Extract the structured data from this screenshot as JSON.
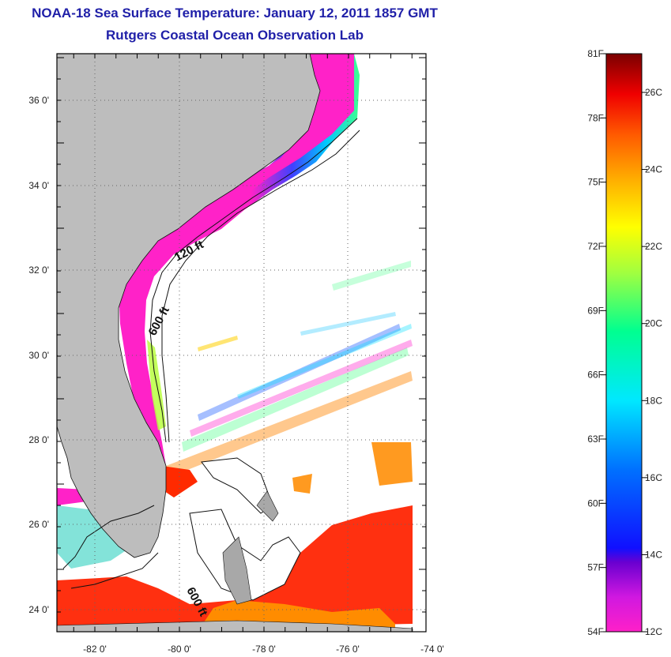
{
  "header": {
    "title": "NOAA-18 Sea Surface Temperature:  January 12, 2011 1857 GMT",
    "subtitle": "Rutgers Coastal Ocean Observation Lab"
  },
  "map": {
    "lon_labels": [
      "-82 0'",
      "-80 0'",
      "-78 0'",
      "-76 0'",
      "-74 0'"
    ],
    "lat_labels": [
      "36 0'",
      "34 0'",
      "32 0'",
      "30 0'",
      "28 0'",
      "26 0'",
      "24 0'"
    ],
    "isobath_labels": [
      "120 ft",
      "600 ft",
      "600 ft"
    ],
    "colors": {
      "land": "#bdbdbd",
      "coldest": "#ff22c8",
      "frame": "#000000"
    }
  },
  "colorbar": {
    "fahrenheit": [
      "81F",
      "78F",
      "75F",
      "72F",
      "69F",
      "66F",
      "63F",
      "60F",
      "57F",
      "54F"
    ],
    "celsius": [
      "26C",
      "24C",
      "22C",
      "20C",
      "18C",
      "16C",
      "14C",
      "12C"
    ]
  }
}
